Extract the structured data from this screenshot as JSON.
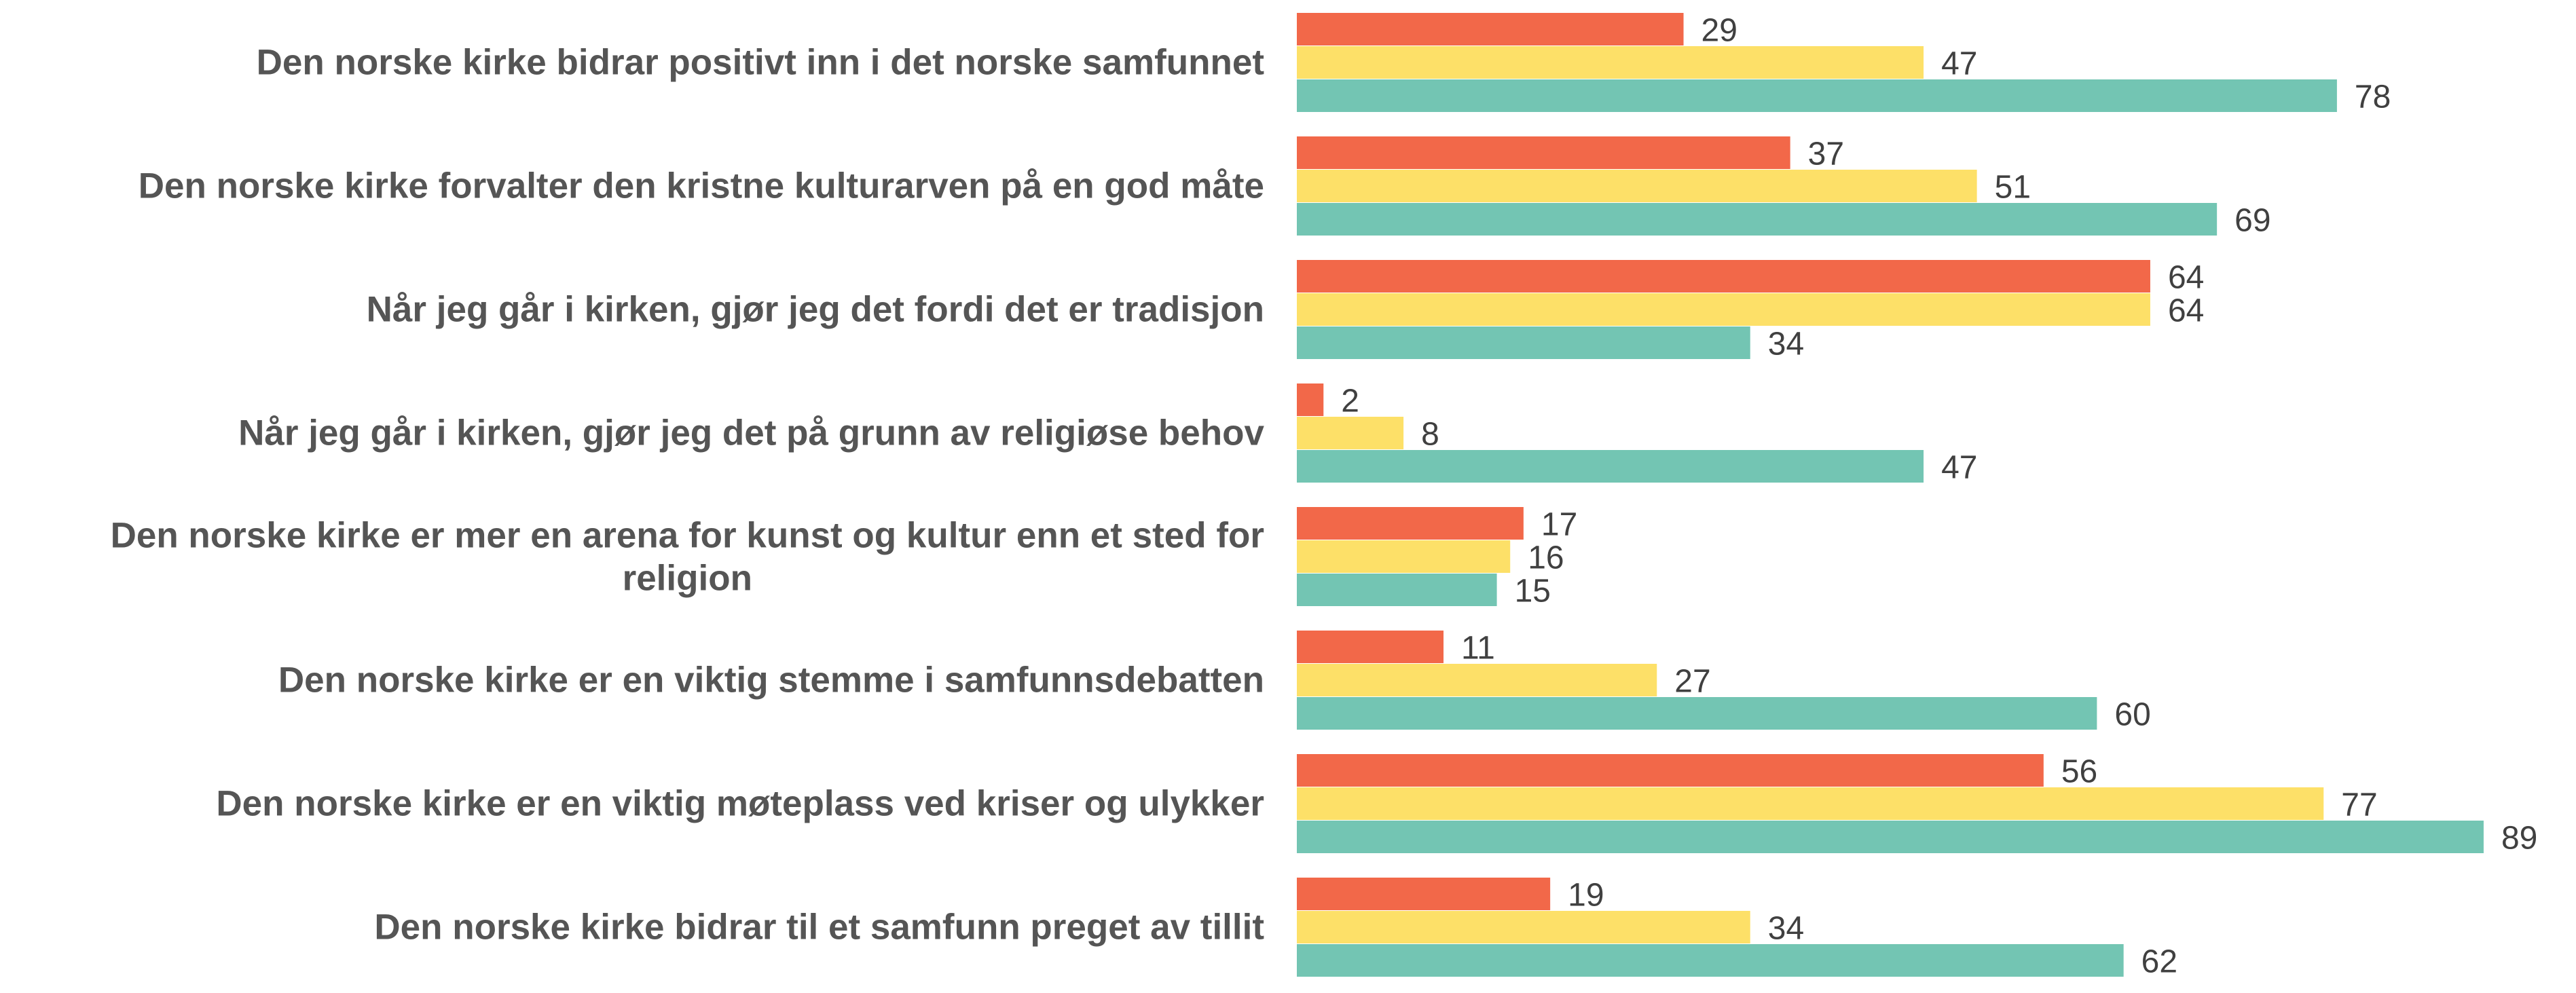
{
  "chart_data": {
    "type": "bar",
    "orientation": "horizontal",
    "title": "",
    "xlabel": "",
    "ylabel": "",
    "xlim": [
      0,
      89
    ],
    "grid": false,
    "legend": "none",
    "categories": [
      [
        "Den norske kirke bidrar positivt inn i det norske samfunnet"
      ],
      [
        "Den norske kirke forvalter den kristne kulturarven på en god måte"
      ],
      [
        "Når jeg går i kirken, gjør jeg det fordi det er tradisjon"
      ],
      [
        "Når jeg går i kirken, gjør jeg det på grunn av religiøse behov"
      ],
      [
        "Den norske kirke er mer en arena for kunst og kultur enn et sted for",
        "religion"
      ],
      [
        "Den norske kirke er en viktig stemme i samfunnsdebatten"
      ],
      [
        "Den norske kirke er en viktig møteplass ved kriser og ulykker"
      ],
      [
        "Den norske kirke bidrar til et samfunn preget av tillit"
      ]
    ],
    "series": [
      {
        "color": "#F26849",
        "values": [
          29,
          37,
          64,
          2,
          17,
          11,
          56,
          19
        ]
      },
      {
        "color": "#FDE068",
        "values": [
          47,
          51,
          64,
          8,
          16,
          27,
          77,
          34
        ]
      },
      {
        "color": "#73C5B3",
        "values": [
          78,
          69,
          34,
          47,
          15,
          60,
          89,
          62
        ]
      }
    ]
  }
}
